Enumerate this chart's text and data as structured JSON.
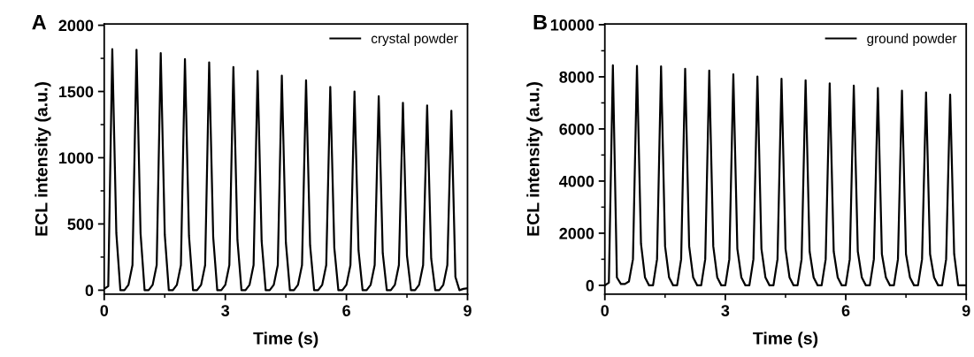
{
  "chart_data": [
    {
      "type": "line",
      "xlabel": "Time (s)",
      "ylabel": "ECL intensity (a.u.)",
      "annotations": [
        "A"
      ],
      "legend": "top right",
      "marker": "none",
      "line_style": "solid",
      "grid": false,
      "xlim": [
        0,
        9
      ],
      "xticks": [
        0,
        3,
        6,
        9
      ],
      "ylim": [
        -30,
        2010
      ],
      "yticks": [
        0,
        500,
        1000,
        1500,
        2000
      ],
      "x": [
        0,
        0.1,
        0.2,
        0.3,
        0.4,
        0.5,
        0.6,
        0.7,
        0.8,
        0.9,
        1.0,
        1.1,
        1.2,
        1.3,
        1.4,
        1.5,
        1.6,
        1.7,
        1.8,
        1.9,
        2.0,
        2.1,
        2.2,
        2.3,
        2.4,
        2.5,
        2.6,
        2.7,
        2.8,
        2.9,
        3.0,
        3.1,
        3.2,
        3.3,
        3.4,
        3.5,
        3.6,
        3.7,
        3.8,
        3.9,
        4.0,
        4.1,
        4.2,
        4.3,
        4.4,
        4.5,
        4.6,
        4.7,
        4.8,
        4.9,
        5.0,
        5.1,
        5.2,
        5.3,
        5.4,
        5.5,
        5.6,
        5.7,
        5.8,
        5.9,
        6.0,
        6.1,
        6.2,
        6.3,
        6.4,
        6.5,
        6.6,
        6.7,
        6.8,
        6.9,
        7.0,
        7.1,
        7.2,
        7.3,
        7.4,
        7.5,
        7.6,
        7.7,
        7.8,
        7.9,
        8.0,
        8.1,
        8.2,
        8.3,
        8.4,
        8.5,
        8.6,
        8.7,
        8.8,
        8.9,
        9.0
      ],
      "series": [
        {
          "name": "crystal powder",
          "color": "#000000",
          "values": [
            10,
            30,
            1820,
            430,
            0,
            0,
            40,
            190,
            1815,
            430,
            0,
            0,
            40,
            190,
            1790,
            420,
            0,
            0,
            40,
            190,
            1745,
            410,
            0,
            0,
            40,
            190,
            1720,
            400,
            0,
            0,
            40,
            190,
            1685,
            380,
            0,
            0,
            40,
            190,
            1655,
            370,
            0,
            0,
            40,
            190,
            1620,
            360,
            0,
            0,
            40,
            190,
            1585,
            340,
            0,
            0,
            40,
            190,
            1535,
            320,
            0,
            0,
            40,
            190,
            1500,
            300,
            0,
            0,
            40,
            190,
            1465,
            280,
            0,
            0,
            40,
            190,
            1415,
            260,
            0,
            0,
            40,
            190,
            1395,
            240,
            0,
            0,
            40,
            190,
            1355,
            100,
            0,
            10,
            15
          ]
        }
      ]
    },
    {
      "type": "line",
      "xlabel": "Time (s)",
      "ylabel": "ECL intensity (a.u.)",
      "annotations": [
        "B"
      ],
      "legend": "top right",
      "marker": "none",
      "line_style": "solid",
      "grid": false,
      "xlim": [
        0,
        9
      ],
      "xticks": [
        0,
        3,
        6,
        9
      ],
      "ylim": [
        -340,
        10030
      ],
      "yticks": [
        0,
        2000,
        4000,
        6000,
        8000,
        10000
      ],
      "x": [
        0,
        0.1,
        0.2,
        0.3,
        0.4,
        0.5,
        0.6,
        0.7,
        0.8,
        0.9,
        1.0,
        1.1,
        1.2,
        1.3,
        1.4,
        1.5,
        1.6,
        1.7,
        1.8,
        1.9,
        2.0,
        2.1,
        2.2,
        2.3,
        2.4,
        2.5,
        2.6,
        2.7,
        2.8,
        2.9,
        3.0,
        3.1,
        3.2,
        3.3,
        3.4,
        3.5,
        3.6,
        3.7,
        3.8,
        3.9,
        4.0,
        4.1,
        4.2,
        4.3,
        4.4,
        4.5,
        4.6,
        4.7,
        4.8,
        4.9,
        5.0,
        5.1,
        5.2,
        5.3,
        5.4,
        5.5,
        5.6,
        5.7,
        5.8,
        5.9,
        6.0,
        6.1,
        6.2,
        6.3,
        6.4,
        6.5,
        6.6,
        6.7,
        6.8,
        6.9,
        7.0,
        7.1,
        7.2,
        7.3,
        7.4,
        7.5,
        7.6,
        7.7,
        7.8,
        7.9,
        8.0,
        8.1,
        8.2,
        8.3,
        8.4,
        8.5,
        8.6,
        8.7,
        8.8,
        8.9,
        9.0
      ],
      "series": [
        {
          "name": "ground powder",
          "color": "#000000",
          "values": [
            0,
            100,
            8440,
            300,
            50,
            50,
            150,
            1000,
            8420,
            1600,
            300,
            0,
            0,
            1000,
            8400,
            1500,
            300,
            0,
            0,
            1000,
            8310,
            1500,
            300,
            0,
            0,
            1000,
            8240,
            1500,
            300,
            0,
            0,
            1000,
            8100,
            1400,
            300,
            0,
            0,
            1000,
            8010,
            1400,
            300,
            0,
            0,
            1000,
            7930,
            1400,
            300,
            0,
            0,
            1000,
            7870,
            1300,
            300,
            0,
            0,
            1000,
            7750,
            1300,
            300,
            0,
            0,
            1000,
            7660,
            1300,
            300,
            0,
            0,
            1000,
            7570,
            1200,
            300,
            0,
            0,
            1000,
            7470,
            1200,
            300,
            0,
            0,
            1000,
            7400,
            1200,
            300,
            0,
            0,
            1000,
            7320,
            1200,
            0,
            0,
            0
          ]
        }
      ]
    }
  ]
}
